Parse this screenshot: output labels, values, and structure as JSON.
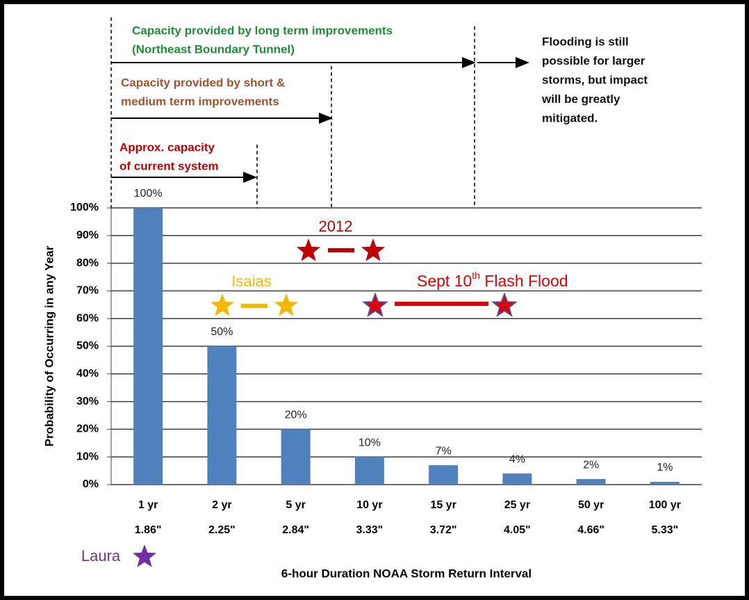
{
  "chart_data": {
    "type": "bar",
    "y_label": "Probability of Occurring in any Year",
    "x_label": "6-hour Duration NOAA Storm Return Interval",
    "categories": [
      "1 yr",
      "2 yr",
      "5 yr",
      "10 yr",
      "15 yr",
      "25 yr",
      "50 yr",
      "100 yr"
    ],
    "rainfall": [
      "1.86\"",
      "2.25\"",
      "2.84\"",
      "3.33\"",
      "3.72\"",
      "4.05\"",
      "4.66\"",
      "5.33\""
    ],
    "values": [
      100,
      50,
      20,
      10,
      7,
      4,
      2,
      1
    ],
    "value_labels": [
      "100%",
      "50%",
      "20%",
      "10%",
      "7%",
      "4%",
      "2%",
      "1%"
    ],
    "color": "#4f81bd",
    "ylim": [
      0,
      100
    ],
    "yticks": [
      {
        "value": 0,
        "label": "0%"
      },
      {
        "value": 10,
        "label": "10%"
      },
      {
        "value": 20,
        "label": "20%"
      },
      {
        "value": 30,
        "label": "30%"
      },
      {
        "value": 40,
        "label": "40%"
      },
      {
        "value": 50,
        "label": "50%"
      },
      {
        "value": 60,
        "label": "60%"
      },
      {
        "value": 70,
        "label": "70%"
      },
      {
        "value": 80,
        "label": "80%"
      },
      {
        "value": 90,
        "label": "90%"
      },
      {
        "value": 100,
        "label": "100%"
      }
    ],
    "grid": true,
    "capacity_notes": [
      {
        "lines": [
          "Capacity provided by long term improvements",
          "(Northeast Boundary Tunnel)"
        ],
        "color": "#1e8c3a"
      },
      {
        "lines": [
          "Capacity provided by short &",
          "medium term improvements"
        ],
        "color": "#a0522d"
      },
      {
        "lines": [
          "Approx. capacity",
          "of current system"
        ],
        "color": "#c00000"
      }
    ],
    "flood_note": [
      "Flooding is still",
      "possible for larger",
      "storms, but impact",
      "will be greatly",
      "mitigated."
    ],
    "storms": {
      "isaias": "Isaias",
      "y2012": "2012",
      "sept10": {
        "text": "Sept 10",
        "sup": "th",
        "rest": " Flash Flood"
      },
      "laura": "Laura"
    }
  }
}
